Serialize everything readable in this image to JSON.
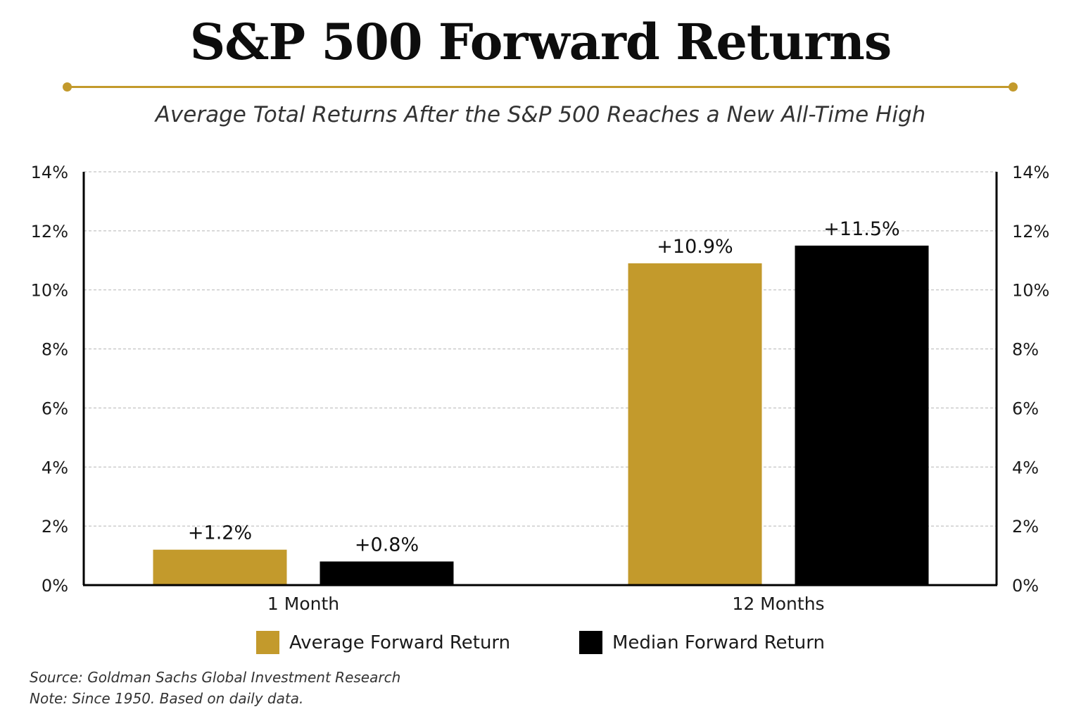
{
  "chart_data": {
    "type": "bar",
    "title": "S&P 500 Forward Returns",
    "subtitle": "Average Total Returns After the S&P 500 Reaches a New All-Time High",
    "categories": [
      "1 Month",
      "12 Months"
    ],
    "series": [
      {
        "name": "Average Forward Return",
        "values": [
          1.2,
          10.9
        ],
        "labels": [
          "+1.2%",
          "+10.9%"
        ],
        "color": "#c39a2c"
      },
      {
        "name": "Median Forward Return",
        "values": [
          0.8,
          11.5
        ],
        "labels": [
          "+0.8%",
          "+11.5%"
        ],
        "color": "#000000"
      }
    ],
    "ylim": [
      0,
      14
    ],
    "yticks": [
      "0%",
      "2%",
      "4%",
      "6%",
      "8%",
      "10%",
      "12%",
      "14%"
    ],
    "ytick_values": [
      0,
      2,
      4,
      6,
      8,
      10,
      12,
      14
    ],
    "grid": true,
    "right_axis": true,
    "legend_position": "bottom"
  },
  "footer": {
    "source": "Source: Goldman Sachs Global Investment Research",
    "note": "Note: Since 1950. Based on daily data."
  },
  "colors": {
    "accent": "#c39a2c",
    "dark": "#000000"
  }
}
